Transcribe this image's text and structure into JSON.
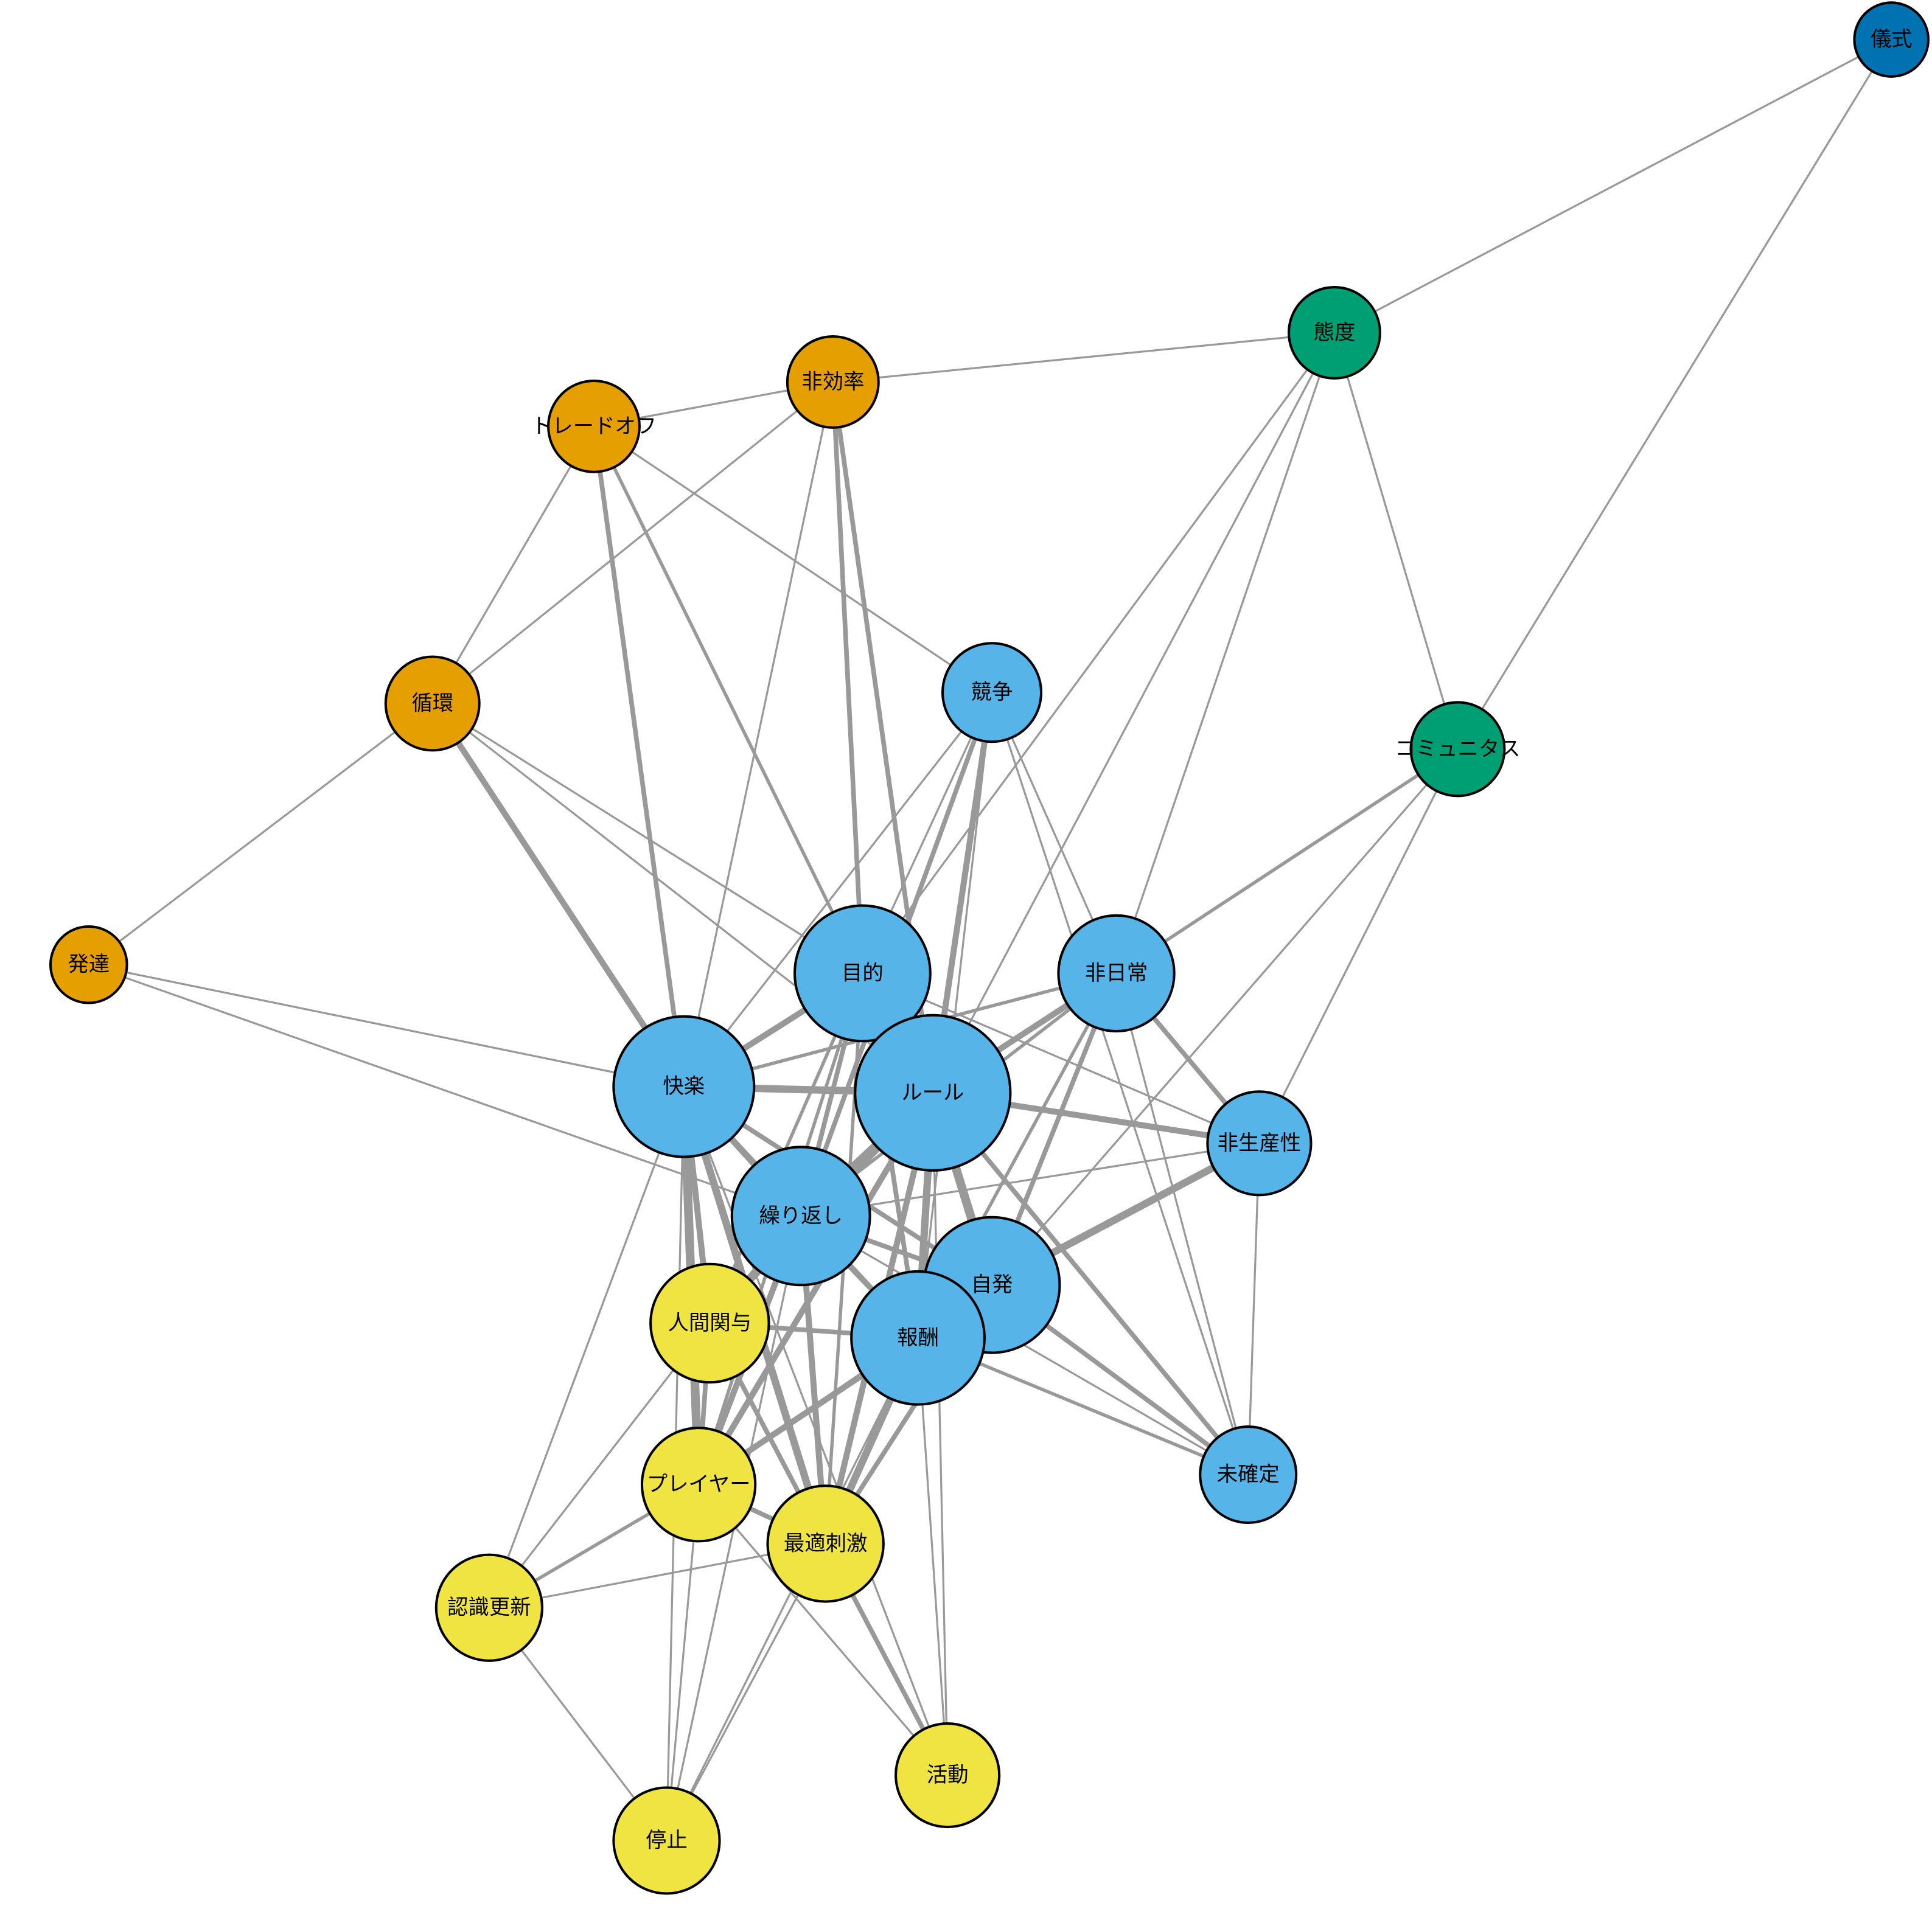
{
  "diagram": {
    "type": "network",
    "edge_color": "#999999",
    "node_border_color": "#000000",
    "groups": {
      "dark_blue": "#0072B2",
      "green": "#009E73",
      "orange": "#E69F00",
      "sky_blue": "#56B4E9",
      "yellow": "#F0E442"
    },
    "nodes": [
      {
        "id": "儀式",
        "group": "dark_blue"
      },
      {
        "id": "態度",
        "group": "green"
      },
      {
        "id": "コミュニタス",
        "group": "green"
      },
      {
        "id": "非効率",
        "group": "orange"
      },
      {
        "id": "トレードオフ",
        "group": "orange"
      },
      {
        "id": "循環",
        "group": "orange"
      },
      {
        "id": "発達",
        "group": "orange"
      },
      {
        "id": "競争",
        "group": "sky_blue"
      },
      {
        "id": "目的",
        "group": "sky_blue"
      },
      {
        "id": "非日常",
        "group": "sky_blue"
      },
      {
        "id": "快楽",
        "group": "sky_blue"
      },
      {
        "id": "ルール",
        "group": "sky_blue"
      },
      {
        "id": "非生産性",
        "group": "sky_blue"
      },
      {
        "id": "繰り返し",
        "group": "sky_blue"
      },
      {
        "id": "自発",
        "group": "sky_blue"
      },
      {
        "id": "人間関与",
        "group": "yellow"
      },
      {
        "id": "報酬",
        "group": "sky_blue"
      },
      {
        "id": "未確定",
        "group": "sky_blue"
      },
      {
        "id": "プレイヤー",
        "group": "yellow"
      },
      {
        "id": "最適刺激",
        "group": "yellow"
      },
      {
        "id": "認識更新",
        "group": "yellow"
      },
      {
        "id": "活動",
        "group": "yellow"
      },
      {
        "id": "停止",
        "group": "yellow"
      }
    ],
    "edges": [
      [
        "儀式",
        "態度",
        1
      ],
      [
        "儀式",
        "コミュニタス",
        1
      ],
      [
        "態度",
        "非効率",
        1
      ],
      [
        "態度",
        "目的",
        1
      ],
      [
        "態度",
        "ルール",
        1
      ],
      [
        "態度",
        "非日常",
        1
      ],
      [
        "態度",
        "コミュニタス",
        1
      ],
      [
        "非効率",
        "トレードオフ",
        1
      ],
      [
        "非効率",
        "循環",
        1
      ],
      [
        "非効率",
        "快楽",
        1
      ],
      [
        "非効率",
        "目的",
        3
      ],
      [
        "非効率",
        "ルール",
        3
      ],
      [
        "トレードオフ",
        "循環",
        1
      ],
      [
        "トレードオフ",
        "快楽",
        3
      ],
      [
        "トレードオフ",
        "目的",
        2
      ],
      [
        "トレードオフ",
        "競争",
        1
      ],
      [
        "循環",
        "発達",
        1
      ],
      [
        "循環",
        "快楽",
        4
      ],
      [
        "循環",
        "目的",
        1
      ],
      [
        "循環",
        "ルール",
        1
      ],
      [
        "発達",
        "快楽",
        1
      ],
      [
        "発達",
        "繰り返し",
        1
      ],
      [
        "競争",
        "快楽",
        1
      ],
      [
        "競争",
        "目的",
        1
      ],
      [
        "競争",
        "ルール",
        4
      ],
      [
        "競争",
        "繰り返し",
        3
      ],
      [
        "競争",
        "報酬",
        1
      ],
      [
        "競争",
        "非日常",
        1
      ],
      [
        "競争",
        "未確定",
        1
      ],
      [
        "目的",
        "快楽",
        4
      ],
      [
        "目的",
        "ルール",
        2
      ],
      [
        "目的",
        "繰り返し",
        3
      ],
      [
        "目的",
        "報酬",
        3
      ],
      [
        "目的",
        "プレイヤー",
        2
      ],
      [
        "目的",
        "最適刺激",
        2
      ],
      [
        "目的",
        "非生産性",
        1
      ],
      [
        "目的",
        "人間関与",
        2
      ],
      [
        "非日常",
        "ルール",
        4
      ],
      [
        "非日常",
        "自発",
        3
      ],
      [
        "非日常",
        "報酬",
        2
      ],
      [
        "非日常",
        "非生産性",
        3
      ],
      [
        "非日常",
        "未確定",
        1
      ],
      [
        "非日常",
        "コミュニタス",
        2
      ],
      [
        "非日常",
        "快楽",
        2
      ],
      [
        "非日常",
        "繰り返し",
        2
      ],
      [
        "コミュニタス",
        "非生産性",
        1
      ],
      [
        "コミュニタス",
        "自発",
        1
      ],
      [
        "快楽",
        "ルール",
        5
      ],
      [
        "快楽",
        "繰り返し",
        4
      ],
      [
        "快楽",
        "人間関与",
        4
      ],
      [
        "快楽",
        "プレイヤー",
        6
      ],
      [
        "快楽",
        "最適刺激",
        5
      ],
      [
        "快楽",
        "報酬",
        3
      ],
      [
        "快楽",
        "自発",
        3
      ],
      [
        "快楽",
        "認識更新",
        1
      ],
      [
        "快楽",
        "停止",
        1
      ],
      [
        "快楽",
        "活動",
        1
      ],
      [
        "ルール",
        "繰り返し",
        6
      ],
      [
        "ルール",
        "自発",
        6
      ],
      [
        "ルール",
        "報酬",
        5
      ],
      [
        "ルール",
        "非生産性",
        4
      ],
      [
        "ルール",
        "未確定",
        3
      ],
      [
        "ルール",
        "人間関与",
        3
      ],
      [
        "ルール",
        "プレイヤー",
        4
      ],
      [
        "ルール",
        "最適刺激",
        4
      ],
      [
        "ルール",
        "活動",
        1
      ],
      [
        "非生産性",
        "自発",
        5
      ],
      [
        "非生産性",
        "未確定",
        1
      ],
      [
        "非生産性",
        "繰り返し",
        1
      ],
      [
        "繰り返し",
        "自発",
        3
      ],
      [
        "繰り返し",
        "報酬",
        3
      ],
      [
        "繰り返し",
        "人間関与",
        3
      ],
      [
        "繰り返し",
        "プレイヤー",
        4
      ],
      [
        "繰り返し",
        "最適刺激",
        4
      ],
      [
        "繰り返し",
        "停止",
        1
      ],
      [
        "繰り返し",
        "未確定",
        1
      ],
      [
        "自発",
        "報酬",
        3
      ],
      [
        "自発",
        "未確定",
        3
      ],
      [
        "自発",
        "プレイヤー",
        2
      ],
      [
        "自発",
        "最適刺激",
        3
      ],
      [
        "人間関与",
        "報酬",
        3
      ],
      [
        "人間関与",
        "プレイヤー",
        3
      ],
      [
        "人間関与",
        "最適刺激",
        3
      ],
      [
        "人間関与",
        "認識更新",
        1
      ],
      [
        "報酬",
        "プレイヤー",
        4
      ],
      [
        "報酬",
        "最適刺激",
        5
      ],
      [
        "報酬",
        "未確定",
        2
      ],
      [
        "報酬",
        "活動",
        1
      ],
      [
        "報酬",
        "停止",
        1
      ],
      [
        "プレイヤー",
        "最適刺激",
        3
      ],
      [
        "プレイヤー",
        "認識更新",
        2
      ],
      [
        "プレイヤー",
        "停止",
        1
      ],
      [
        "プレイヤー",
        "活動",
        1
      ],
      [
        "最適刺激",
        "認識更新",
        1
      ],
      [
        "最適刺激",
        "活動",
        3
      ],
      [
        "最適刺激",
        "停止",
        1
      ],
      [
        "認識更新",
        "停止",
        1
      ]
    ]
  }
}
